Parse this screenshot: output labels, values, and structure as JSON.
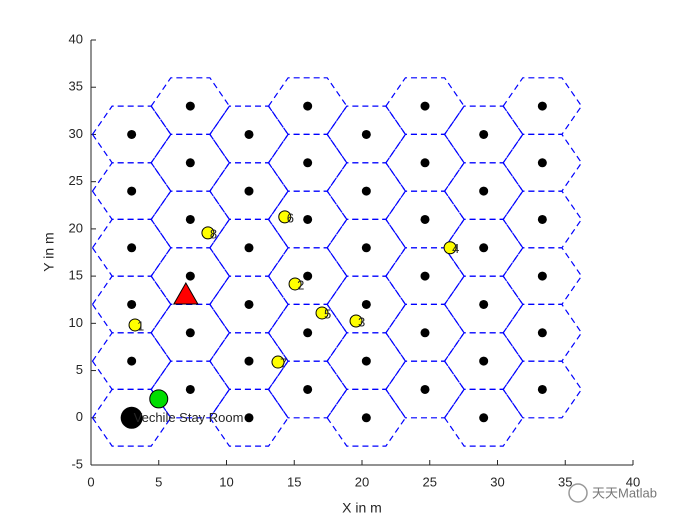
{
  "chart_data": {
    "type": "scatter",
    "xlabel": "X in m",
    "ylabel": "Y in m",
    "xlim": [
      0,
      40
    ],
    "ylim": [
      -5,
      40
    ],
    "xticks": [
      0,
      5,
      10,
      15,
      20,
      25,
      30,
      35,
      40
    ],
    "yticks": [
      -5,
      0,
      5,
      10,
      15,
      20,
      25,
      30,
      35,
      40
    ],
    "hex_color": "#0000ff",
    "series": [
      {
        "marker": "cell",
        "color": "#000000",
        "x": [
          3,
          3,
          3,
          3,
          3,
          3,
          7.33,
          7.33,
          7.33,
          7.33,
          7.33,
          7.33,
          11.66,
          11.66,
          11.66,
          11.66,
          11.66,
          11.66,
          15.99,
          15.99,
          15.99,
          15.99,
          15.99,
          15.99,
          20.32,
          20.32,
          20.32,
          20.32,
          20.32,
          20.32,
          24.65,
          24.65,
          24.65,
          24.65,
          24.65,
          24.65,
          28.98,
          28.98,
          28.98,
          28.98,
          28.98,
          28.98,
          33.31,
          33.31,
          33.31,
          33.31,
          33.31,
          33.31
        ],
        "values": [
          0,
          6,
          12,
          18,
          24,
          30,
          3,
          9,
          15,
          21,
          27,
          33,
          0,
          6,
          12,
          18,
          24,
          30,
          3,
          9,
          15,
          21,
          27,
          33,
          0,
          6,
          12,
          18,
          24,
          30,
          3,
          9,
          15,
          21,
          27,
          33,
          0,
          6,
          12,
          18,
          24,
          30,
          3,
          9,
          15,
          21,
          27,
          33
        ]
      },
      {
        "marker": "user",
        "color": "#ffff00",
        "x": [
          3.25,
          15.06,
          19.56,
          26.5,
          17.05,
          14.3,
          13.8,
          8.63
        ],
        "values": [
          9.83,
          14.17,
          10.25,
          18,
          11.1,
          21.27,
          5.9,
          19.58
        ],
        "labels": [
          "1",
          "2",
          "3",
          "4",
          "5",
          "6",
          "7",
          "8"
        ]
      },
      {
        "marker": "triangle",
        "color": "#ff0000",
        "x": [
          7
        ],
        "values": [
          13
        ]
      },
      {
        "marker": "big-circle",
        "color": "#00dd00",
        "x": [
          5
        ],
        "values": [
          2
        ]
      },
      {
        "marker": "big-dot",
        "color": "#000000",
        "x": [
          3
        ],
        "values": [
          0
        ],
        "labels": [
          "Vechile Stay Room"
        ]
      }
    ],
    "watermark": "天天Matlab"
  }
}
